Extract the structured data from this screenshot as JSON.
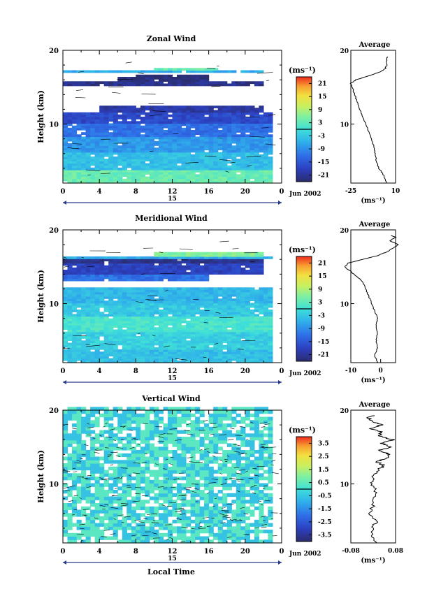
{
  "figure": {
    "month_label": "Jun 2002",
    "xlabel": "Local Time"
  },
  "chart_data": [
    {
      "type": "heatmap",
      "title": "Zonal Wind",
      "ylabel": "Height (km)",
      "xlabel": "",
      "x_ticks": [
        "0",
        "4",
        "8",
        "12",
        "16",
        "20",
        "0"
      ],
      "xlim": [
        0,
        24
      ],
      "y_ticks": [
        "20",
        "10"
      ],
      "ylim": [
        2,
        20
      ],
      "day_label": "15",
      "colorbar": {
        "unit": "(ms⁻¹)",
        "ticks": [
          "21",
          "15",
          "9",
          "3",
          "-3",
          "-9",
          "-15",
          "-21"
        ],
        "range": [
          -24,
          24
        ],
        "zero_line": 0
      },
      "features": [
        {
          "z0": 2.0,
          "z1": 3.5,
          "value": 4,
          "t0": 0,
          "t1": 23
        },
        {
          "z0": 3.5,
          "z1": 6.0,
          "value": -4,
          "t0": 0,
          "t1": 23
        },
        {
          "z0": 6.0,
          "z1": 8.0,
          "value": -8,
          "t0": 0,
          "t1": 23
        },
        {
          "z0": 8.0,
          "z1": 10.0,
          "value": -12,
          "t0": 0,
          "t1": 23
        },
        {
          "z0": 10.0,
          "z1": 11.5,
          "value": -17,
          "t0": 0,
          "t1": 23
        },
        {
          "z0": 11.5,
          "z1": 12.5,
          "value": -20,
          "t0": 4,
          "t1": 22
        },
        {
          "z0": 15.2,
          "z1": 15.6,
          "value": -22,
          "t0": 0,
          "t1": 22
        },
        {
          "z0": 15.6,
          "z1": 16.2,
          "value": -23,
          "t0": 6,
          "t1": 16
        },
        {
          "z0": 16.2,
          "z1": 16.5,
          "value": -24,
          "t0": 8,
          "t1": 16
        },
        {
          "z0": 16.9,
          "z1": 17.2,
          "value": -6,
          "t0": 0,
          "t1": 22
        },
        {
          "z0": 17.2,
          "z1": 17.5,
          "value": 4,
          "t0": 10,
          "t1": 17
        }
      ],
      "average": {
        "xlim": [
          -25,
          10
        ],
        "x_ticks": [
          "-25",
          "10"
        ],
        "unit": "(ms⁻¹)",
        "title": "Average",
        "profile": [
          [
            2,
            3
          ],
          [
            3,
            1
          ],
          [
            4,
            -3
          ],
          [
            5,
            -5
          ],
          [
            6,
            -6
          ],
          [
            7,
            -7
          ],
          [
            8,
            -9
          ],
          [
            9,
            -11
          ],
          [
            10,
            -13
          ],
          [
            11,
            -16
          ],
          [
            12,
            -18
          ],
          [
            13,
            -20
          ],
          [
            14,
            -22
          ],
          [
            15,
            -24
          ],
          [
            15.5,
            -25
          ],
          [
            16,
            -21
          ],
          [
            16.5,
            -12
          ],
          [
            17,
            -3
          ],
          [
            17.5,
            2
          ],
          [
            18,
            3
          ],
          [
            18.8,
            3
          ],
          [
            19.2,
            4
          ]
        ]
      }
    },
    {
      "type": "heatmap",
      "title": "Meridional Wind",
      "ylabel": "Height (km)",
      "xlabel": "",
      "x_ticks": [
        "0",
        "4",
        "8",
        "12",
        "16",
        "20",
        "0"
      ],
      "xlim": [
        0,
        24
      ],
      "y_ticks": [
        "20",
        "10"
      ],
      "ylim": [
        2,
        20
      ],
      "day_label": "15",
      "colorbar": {
        "unit": "(ms⁻¹)",
        "ticks": [
          "21",
          "15",
          "9",
          "3",
          "-3",
          "-9",
          "-15",
          "-21"
        ],
        "range": [
          -24,
          24
        ],
        "zero_line": 0
      },
      "features": [
        {
          "z0": 2.0,
          "z1": 3.5,
          "value": -4,
          "t0": 0,
          "t1": 23
        },
        {
          "z0": 3.5,
          "z1": 6.0,
          "value": -2,
          "t0": 0,
          "t1": 23
        },
        {
          "z0": 6.0,
          "z1": 8.0,
          "value": 1,
          "t0": 0,
          "t1": 23
        },
        {
          "z0": 8.0,
          "z1": 10.0,
          "value": -3,
          "t0": 0,
          "t1": 23
        },
        {
          "z0": 10.0,
          "z1": 12.0,
          "value": -5,
          "t0": 0,
          "t1": 23
        },
        {
          "z0": 13.0,
          "z1": 14.0,
          "value": -12,
          "t0": 0,
          "t1": 16
        },
        {
          "z0": 14.0,
          "z1": 15.5,
          "value": -18,
          "t0": 0,
          "t1": 22
        },
        {
          "z0": 15.5,
          "z1": 16.0,
          "value": -22,
          "t0": 0,
          "t1": 22
        },
        {
          "z0": 16.0,
          "z1": 16.4,
          "value": -6,
          "t0": 0,
          "t1": 23
        },
        {
          "z0": 16.4,
          "z1": 16.8,
          "value": 6,
          "t0": 10,
          "t1": 22
        }
      ],
      "average": {
        "xlim": [
          -10,
          5
        ],
        "x_ticks": [
          "-10",
          "0"
        ],
        "unit": "(ms⁻¹)",
        "title": "Average",
        "profile": [
          [
            2,
            -1
          ],
          [
            3,
            -2
          ],
          [
            4,
            -1
          ],
          [
            5,
            -1.5
          ],
          [
            6,
            -1
          ],
          [
            7,
            -1.5
          ],
          [
            8,
            -1
          ],
          [
            9,
            -2
          ],
          [
            10,
            -3
          ],
          [
            11,
            -4
          ],
          [
            12,
            -5
          ],
          [
            13,
            -6
          ],
          [
            14,
            -9
          ],
          [
            15,
            -12
          ],
          [
            15.5,
            -11
          ],
          [
            16,
            -6
          ],
          [
            16.5,
            -1
          ],
          [
            17,
            2
          ],
          [
            17.5,
            4
          ],
          [
            18,
            6
          ],
          [
            18.5,
            3
          ],
          [
            19,
            5
          ],
          [
            19.3,
            3
          ]
        ]
      }
    },
    {
      "type": "heatmap",
      "title": "Vertical Wind",
      "ylabel": "Height (km)",
      "xlabel": "",
      "x_ticks": [
        "0",
        "4",
        "8",
        "12",
        "16",
        "20",
        "0"
      ],
      "xlim": [
        0,
        24
      ],
      "y_ticks": [
        "20",
        "10"
      ],
      "ylim": [
        2,
        20
      ],
      "day_label": "15",
      "colorbar": {
        "unit": "(ms⁻¹)",
        "ticks": [
          "3.5",
          "2.5",
          "1.5",
          "0.5",
          "-0.5",
          "-1.5",
          "-2.5",
          "-3.5"
        ],
        "range": [
          -4,
          4
        ],
        "zero_line": 0
      },
      "features": [
        {
          "z0": 2.0,
          "z1": 20.0,
          "value": 0.3,
          "t0": 0,
          "t1": 23
        }
      ],
      "average": {
        "xlim": [
          -0.08,
          0.08
        ],
        "x_ticks": [
          "-0.08",
          "0.08"
        ],
        "unit": "(ms⁻¹)",
        "title": "Average",
        "profile": [
          [
            2,
            0.01
          ],
          [
            3,
            -0.01
          ],
          [
            4,
            0.0
          ],
          [
            5,
            0.01
          ],
          [
            6,
            -0.01
          ],
          [
            7,
            0.0
          ],
          [
            8,
            0.0
          ],
          [
            9,
            0.01
          ],
          [
            10,
            -0.01
          ],
          [
            11,
            0.0
          ],
          [
            12,
            0.02
          ],
          [
            12.5,
            0.04
          ],
          [
            13,
            0.01
          ],
          [
            13.5,
            0.05
          ],
          [
            14,
            0.06
          ],
          [
            14.5,
            0.02
          ],
          [
            15,
            0.06
          ],
          [
            15.5,
            0.03
          ],
          [
            16,
            0.07
          ],
          [
            16.5,
            0.02
          ],
          [
            17,
            0.03
          ],
          [
            17.5,
            -0.01
          ],
          [
            18,
            0.03
          ],
          [
            18.5,
            0.0
          ],
          [
            19,
            -0.02
          ],
          [
            19.3,
            0.01
          ]
        ]
      }
    }
  ]
}
